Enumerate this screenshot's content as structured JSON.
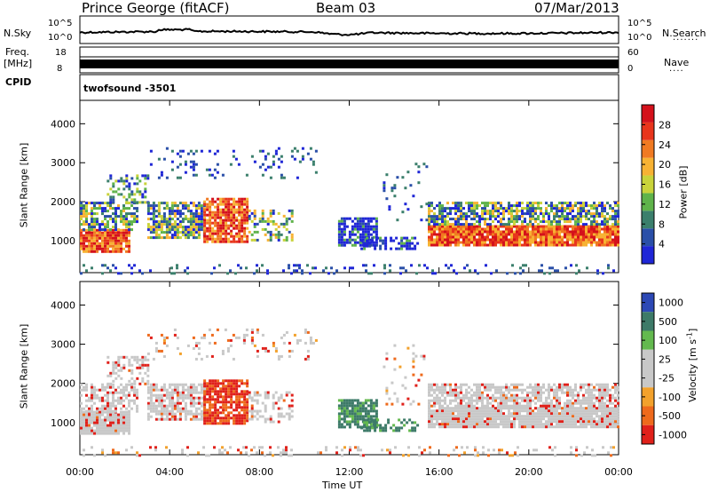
{
  "header": {
    "station": "Prince George (fitACF)",
    "beam": "Beam 03",
    "date": "07/Mar/2013"
  },
  "strips": {
    "nsky_label": "N.Sky",
    "nsky_top": "10^5",
    "nsky_bottom": "10^0",
    "nsearch_label": "N.Search",
    "freq_label_1": "Freq.",
    "freq_label_2": "[MHz]",
    "freq_top": "18",
    "freq_bottom": "8",
    "nave_label": "Nave",
    "nave_top": "60",
    "nave_bottom": "0",
    "cpid_label": "CPID",
    "cpid_value": "twofsound -3501"
  },
  "colors": {
    "power_scale": [
      "#1f26d6",
      "#2a4fa8",
      "#3b7f6c",
      "#5fb34a",
      "#c9d33a",
      "#f7b233",
      "#f07a22",
      "#e8351c",
      "#d4111b"
    ],
    "velocity_scale": [
      "#2c48b5",
      "#3d7a68",
      "#63b94e",
      "#c8c8c8",
      "#c8c8c8",
      "#f2a12c",
      "#ee6a1c",
      "#e0201a"
    ]
  },
  "chart_data": [
    {
      "type": "heatmap",
      "name_printed": "Power",
      "ylabel": "Slant Range [km]",
      "ylim": [
        180,
        4600
      ],
      "yticks": [
        1000,
        2000,
        3000,
        4000
      ],
      "xlim": [
        0,
        24
      ],
      "colorbar_label": "Power [dB]",
      "colorbar_ticks": [
        4,
        8,
        12,
        16,
        20,
        24,
        28
      ],
      "colorbar_range": [
        0,
        32
      ]
    },
    {
      "type": "heatmap",
      "name_printed": "Velocity",
      "ylabel": "Slant Range [km]",
      "ylim": [
        180,
        4600
      ],
      "yticks": [
        1000,
        2000,
        3000,
        4000
      ],
      "xlim": [
        0,
        24
      ],
      "xlabel": "Time UT",
      "xticks": [
        "00:00",
        "04:00",
        "08:00",
        "12:00",
        "16:00",
        "20:00",
        "00:00"
      ],
      "colorbar_label": "Velocity [m s",
      "colorbar_label_sup": "-1",
      "colorbar_label_end": "]",
      "colorbar_ticks": [
        "1000",
        "500",
        "100",
        "25",
        "-25",
        "-100",
        "-500",
        "-1000"
      ]
    }
  ]
}
